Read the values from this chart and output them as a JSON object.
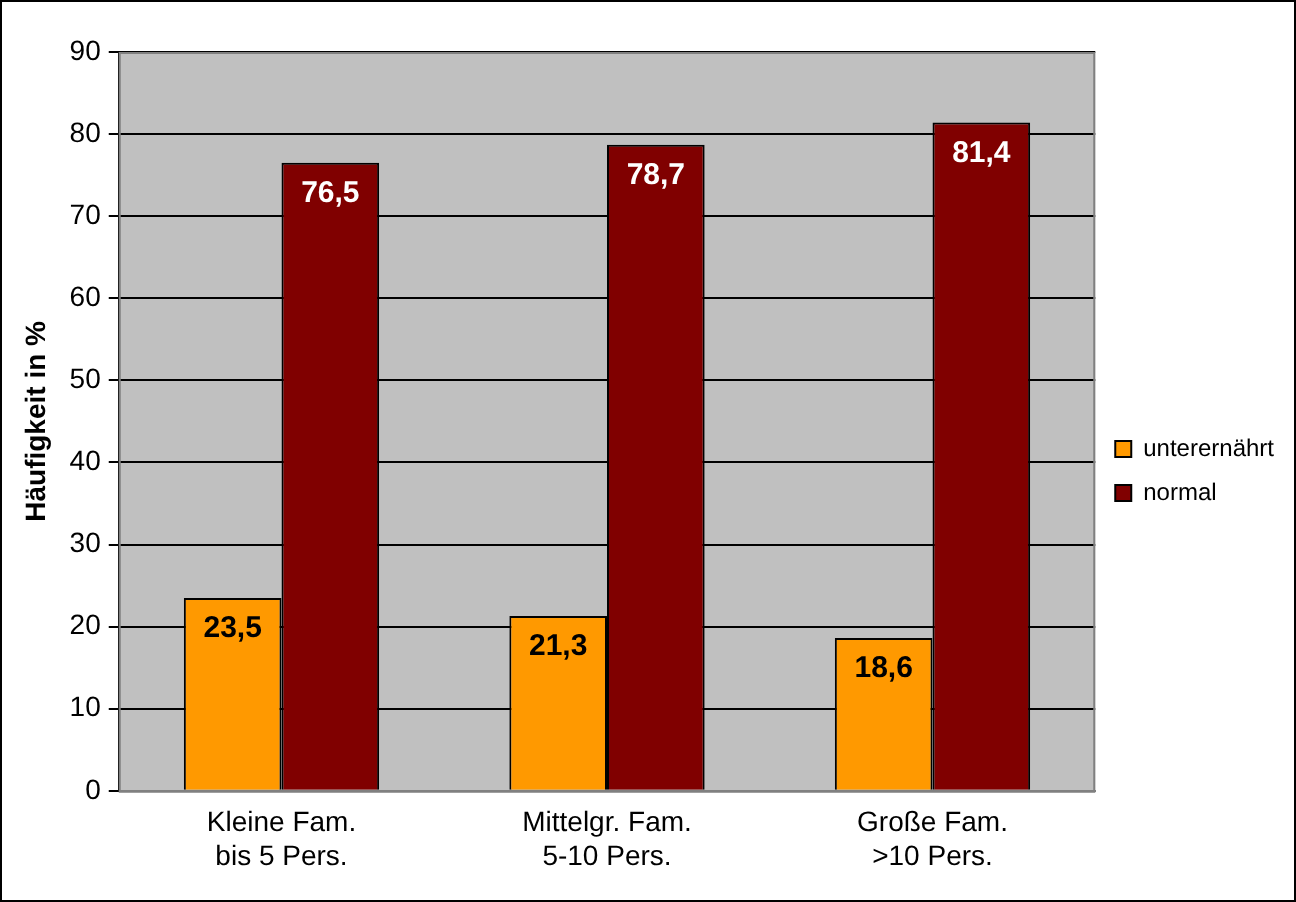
{
  "chart_data": {
    "type": "bar",
    "ylabel": "Häufigkeit in %",
    "categories": [
      "Kleine Fam.\nbis 5 Pers.",
      "Mittelgr. Fam.\n5-10 Pers.",
      "Große Fam.\n>10 Pers."
    ],
    "series": [
      {
        "name": "unterernährt",
        "color": "#ff9900",
        "values": [
          23.5,
          21.3,
          18.6
        ],
        "value_labels": [
          "23,5",
          "21,3",
          "18,6"
        ]
      },
      {
        "name": "normal",
        "color": "#800000",
        "values": [
          76.5,
          78.7,
          81.4
        ],
        "value_labels": [
          "76,5",
          "78,7",
          "81,4"
        ]
      }
    ],
    "ylim": [
      0,
      90
    ],
    "yticks": [
      0,
      10,
      20,
      30,
      40,
      50,
      60,
      70,
      80,
      90
    ],
    "grid": "y",
    "legend": "right"
  }
}
